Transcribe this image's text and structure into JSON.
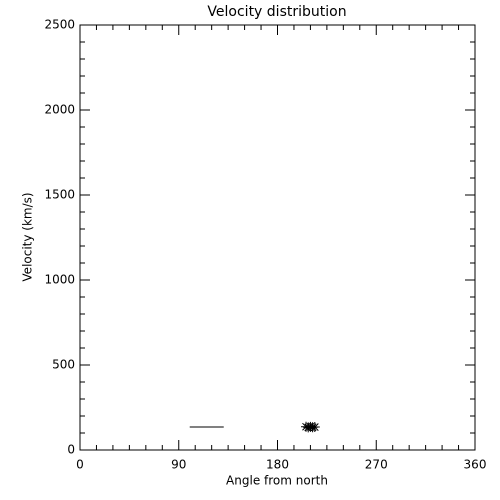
{
  "chart_data": {
    "type": "scatter",
    "title": "Velocity distribution",
    "x_label": "Angle from north",
    "y_label": "Velocity (km/s)",
    "xlim": [
      0,
      360
    ],
    "xticks": [
      0,
      90,
      180,
      270,
      360
    ],
    "x_minor_per_major": 6,
    "ylim": [
      0,
      2500
    ],
    "yticks": [
      0,
      500,
      1000,
      1500,
      2000,
      2500
    ],
    "y_minor_per_major": 5,
    "color": "#000000",
    "series": [
      {
        "type": "line",
        "x": [
          100,
          131
        ],
        "values": [
          135,
          135
        ]
      },
      {
        "type": "scatter",
        "x": [
          206,
          208,
          210,
          212,
          214
        ],
        "values": [
          137,
          133,
          136,
          134,
          135
        ]
      }
    ]
  }
}
